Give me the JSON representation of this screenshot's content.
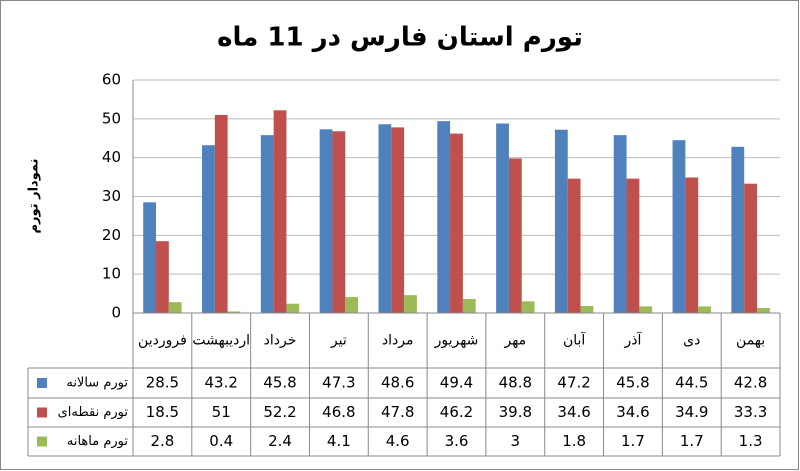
{
  "chart_data": {
    "type": "bar",
    "title": "تورم استان فارس در 11 ماه",
    "y_label": "نمودار تورم",
    "categories": [
      "فروردین",
      "اردیبهشت",
      "خرداد",
      "تیر",
      "مرداد",
      "شهریور",
      "مهر",
      "آبان",
      "آذر",
      "دی",
      "بهمن"
    ],
    "series": [
      {
        "name": "تورم سالانه",
        "color": "#4f81bd",
        "values": [
          28.5,
          43.2,
          45.8,
          47.3,
          48.6,
          49.4,
          48.8,
          47.2,
          45.8,
          44.5,
          42.8
        ]
      },
      {
        "name": "تورم نقطه‌ای",
        "color": "#c0504d",
        "values": [
          18.5,
          51,
          52.2,
          46.8,
          47.8,
          46.2,
          39.8,
          34.6,
          34.6,
          34.9,
          33.3
        ]
      },
      {
        "name": "تورم ماهانه",
        "color": "#9bbb59",
        "values": [
          2.8,
          0.4,
          2.4,
          4.1,
          4.6,
          3.6,
          3,
          1.8,
          1.7,
          1.7,
          1.3
        ]
      }
    ],
    "ylim": [
      0,
      60
    ],
    "yticks": [
      0,
      10,
      20,
      30,
      40,
      50,
      60
    ],
    "grid": true,
    "data_table": true
  }
}
